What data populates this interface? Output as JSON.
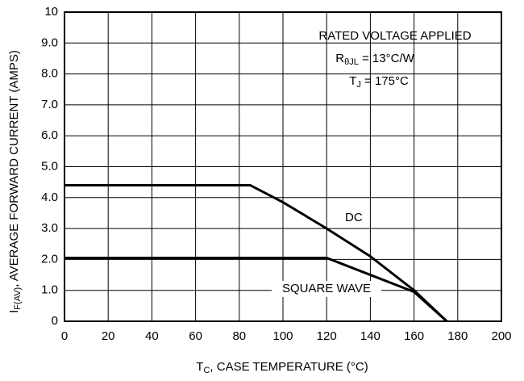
{
  "chart_data": {
    "type": "line",
    "x_label": {
      "symbol": "T",
      "subscript": "C",
      "text": ", CASE TEMPERATURE (°C)"
    },
    "y_label": {
      "symbol": "I",
      "subscript": "F(AV)",
      "text": ", AVERAGE FORWARD CURRENT (AMPS)"
    },
    "annotations": {
      "line1": "RATED VOLTAGE APPLIED",
      "line2": {
        "symbol": "R",
        "subscript": "θJL",
        "text": " = 13°C/W"
      },
      "line3": {
        "symbol": "T",
        "subscript": "J",
        "text": " = 175°C"
      }
    },
    "xlim": [
      0,
      200
    ],
    "xticks": [
      0,
      20,
      40,
      60,
      80,
      100,
      120,
      140,
      160,
      180,
      200
    ],
    "ylim": [
      0,
      10
    ],
    "yticks": [
      0,
      {
        "value": 1,
        "label": "1.0"
      },
      {
        "value": 2,
        "label": "2.0"
      },
      {
        "value": 3,
        "label": "3.0"
      },
      {
        "value": 4,
        "label": "4.0"
      },
      {
        "value": 5,
        "label": "5.0"
      },
      {
        "value": 6,
        "label": "6.0"
      },
      {
        "value": 7,
        "label": "7.0"
      },
      {
        "value": 8,
        "label": "8.0"
      },
      {
        "value": 9,
        "label": "9.0"
      },
      10
    ],
    "grid": true,
    "series": [
      {
        "name": "DC",
        "color": "#000000",
        "x": [
          0,
          85,
          100,
          120,
          140,
          160,
          175
        ],
        "values": [
          4.4,
          4.4,
          3.85,
          3.0,
          2.1,
          1.0,
          0
        ]
      },
      {
        "name": "SQUARE WAVE",
        "color": "#000000",
        "x": [
          0,
          120,
          140,
          160,
          175
        ],
        "values": [
          2.05,
          2.05,
          1.5,
          0.95,
          0
        ]
      }
    ]
  }
}
